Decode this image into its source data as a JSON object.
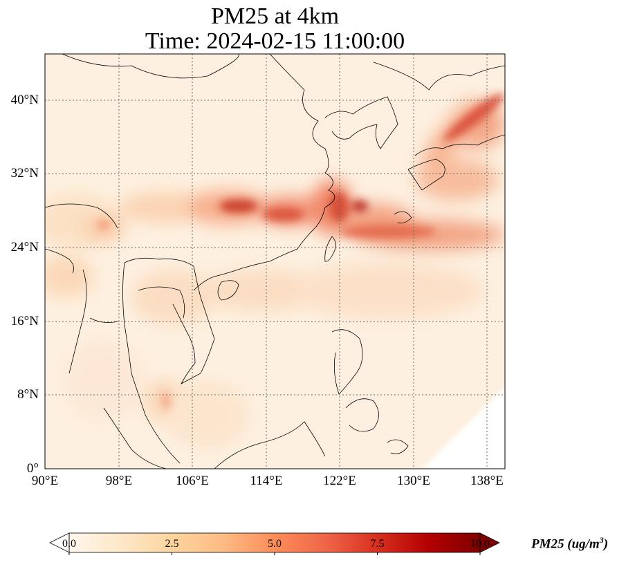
{
  "title": {
    "line1": "PM25 at 4km",
    "line2": "Time: 2024-02-15 11:00:00"
  },
  "map": {
    "lon_range": [
      90,
      140
    ],
    "lat_range": [
      0,
      45
    ],
    "gridlines": "dotted",
    "x_ticks": [
      "90°E",
      "98°E",
      "106°E",
      "114°E",
      "122°E",
      "130°E",
      "138°E"
    ],
    "y_ticks": [
      "0°",
      "8°N",
      "16°N",
      "24°N",
      "32°N",
      "40°N"
    ]
  },
  "colorbar": {
    "label_text": "PM25 (ug/m",
    "label_sup": "3",
    "label_close": ")",
    "ticks": [
      "0.0",
      "2.5",
      "5.0",
      "7.5",
      "10.0"
    ],
    "range": [
      0,
      10
    ],
    "colormap": "OrRd",
    "extend": "both",
    "colors": [
      "#fff7ec",
      "#fee8c8",
      "#fdd49e",
      "#fdbb84",
      "#fc8d59",
      "#ef6548",
      "#d7301f",
      "#b30000",
      "#7f0000"
    ]
  }
}
